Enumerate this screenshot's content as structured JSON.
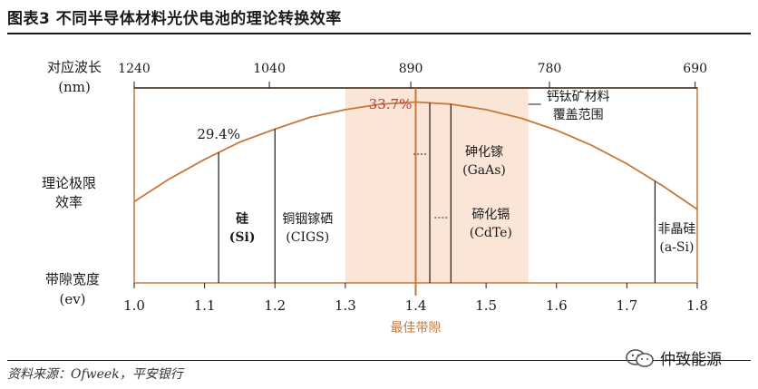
{
  "header": {
    "title": "图表3    不同半导体材料光伏电池的理论转换效率"
  },
  "footer": {
    "source": "资料来源：Ofweek，平安银行"
  },
  "watermark": {
    "text": "仲致能源",
    "icon": "wechat-icon"
  },
  "colors": {
    "accent": "#c8773a",
    "band": "#fbe5d6",
    "peak": "#c0392b",
    "text": "#1a1a1a"
  },
  "chart_data": {
    "type": "line",
    "title": "",
    "xlabel": "最佳带隙",
    "ylabel_rows": [
      "理论极限",
      "效率"
    ],
    "bottom_axis_label": [
      "带隙宽度",
      "(ev)"
    ],
    "top_axis_label": [
      "对应波长",
      "(nm)"
    ],
    "xlim": [
      1.0,
      1.8
    ],
    "bottom_ticks": [
      "1.0",
      "1.1",
      "1.2",
      "1.3",
      "1.4",
      "1.5",
      "1.6",
      "1.7",
      "1.8"
    ],
    "top_ticks": [
      {
        "x": 1.0,
        "label": "1240"
      },
      {
        "x": 1.192,
        "label": "1040"
      },
      {
        "x": 1.393,
        "label": "890"
      },
      {
        "x": 1.59,
        "label": "780"
      },
      {
        "x": 1.797,
        "label": "690"
      }
    ],
    "curve": {
      "x": [
        1.0,
        1.05,
        1.1,
        1.15,
        1.2,
        1.25,
        1.3,
        1.35,
        1.4,
        1.45,
        1.5,
        1.55,
        1.6,
        1.65,
        1.7,
        1.75,
        1.8
      ],
      "y": [
        24.5,
        26.6,
        28.4,
        30.0,
        31.2,
        32.3,
        33.0,
        33.5,
        33.7,
        33.5,
        33.0,
        32.2,
        31.1,
        29.7,
        28.0,
        26.0,
        23.8
      ]
    },
    "ylim": [
      17,
      35
    ],
    "peak": {
      "x": 1.4,
      "label": "33.7%"
    },
    "band": {
      "x0": 1.3,
      "x1": 1.56,
      "label": [
        "钙钛矿材料",
        "覆盖范围"
      ]
    },
    "markers": [
      {
        "name": "si",
        "x": 1.12,
        "label": [
          "硅",
          "(Si)"
        ],
        "value_label": "29.4%"
      },
      {
        "name": "cigs",
        "x": 1.2,
        "label": [
          "铜铟镓硒",
          "(CIGS)"
        ]
      },
      {
        "name": "gaas",
        "x": 1.42,
        "label": [
          "砷化镓",
          "(GaAs)"
        ]
      },
      {
        "name": "cdte",
        "x": 1.45,
        "label": [
          "碲化镉",
          "(CdTe)"
        ]
      },
      {
        "name": "asi",
        "x": 1.74,
        "label": [
          "非晶硅",
          "(a-Si)"
        ]
      }
    ]
  }
}
